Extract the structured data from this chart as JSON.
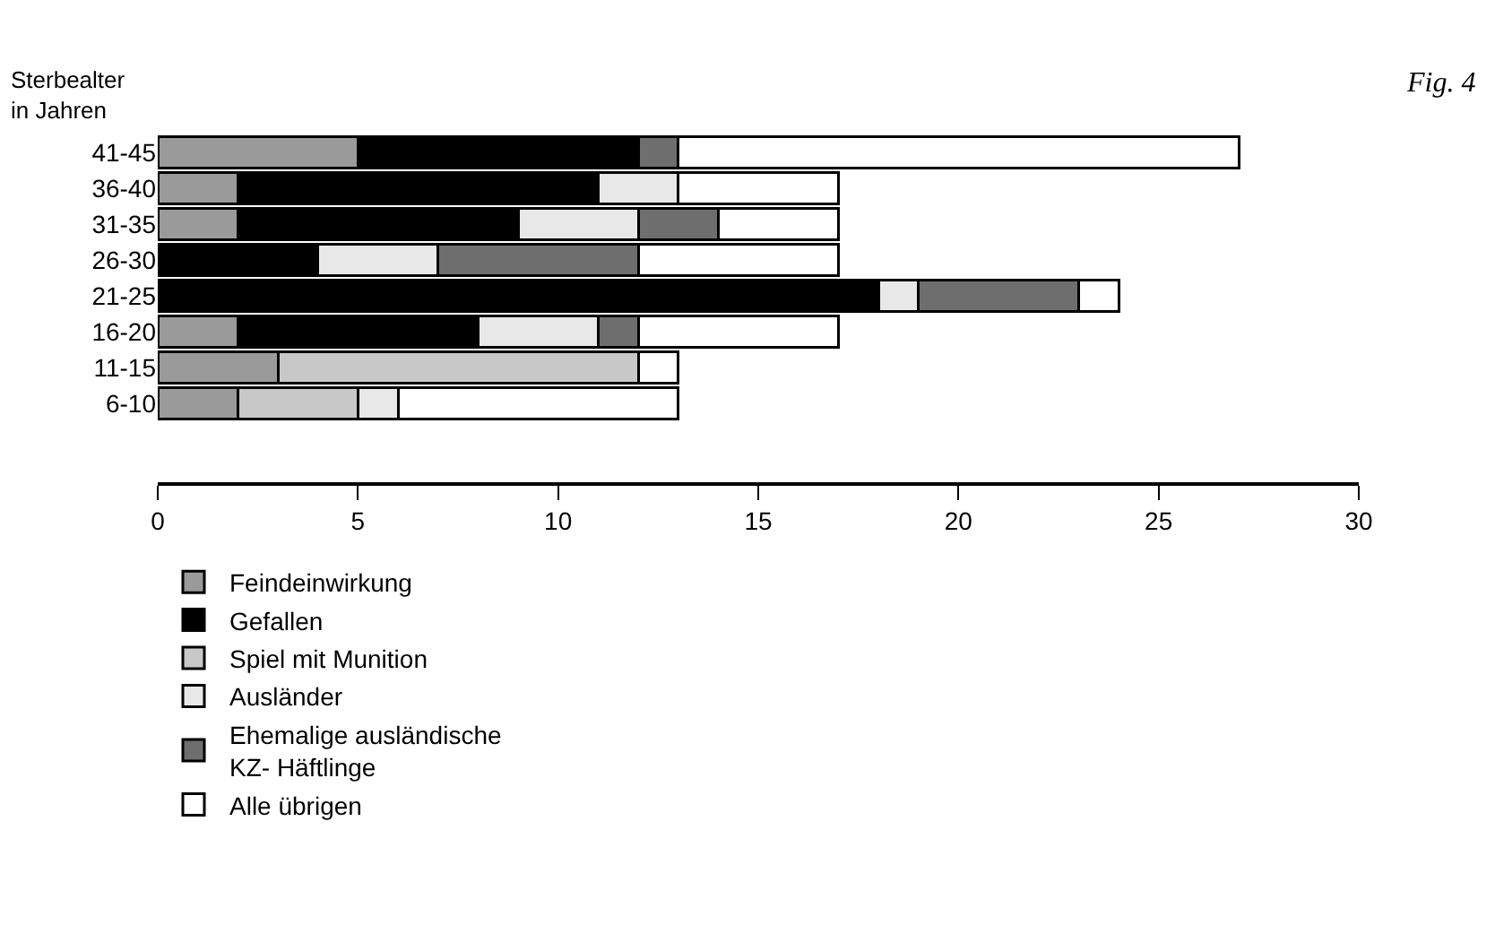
{
  "chart_data": {
    "type": "bar",
    "orientation": "horizontal",
    "stacked": true,
    "ylabel": "Sterbealter\nin Jahren",
    "annotations": [
      "Fig. 4"
    ],
    "categories": [
      "41-45",
      "36-40",
      "31-35",
      "26-30",
      "21-25",
      "16-20",
      "11-15",
      "6-10"
    ],
    "series": [
      {
        "name": "Feindeinwirkung",
        "color": "#9a9a9a",
        "values": [
          5,
          2,
          2,
          null,
          null,
          2,
          3,
          2
        ]
      },
      {
        "name": "Gefallen",
        "color": "#000000",
        "values": [
          7,
          9,
          7,
          4,
          18,
          6,
          null,
          null
        ]
      },
      {
        "name": "Spiel mit Munition",
        "color": "#c8c8c8",
        "values": [
          null,
          null,
          null,
          null,
          null,
          null,
          9,
          3
        ]
      },
      {
        "name": "Ausländer",
        "color": "#e8e8e8",
        "values": [
          null,
          2,
          3,
          3,
          1,
          3,
          null,
          1
        ]
      },
      {
        "name": "Ehemalige ausländische\nKZ- Häftlinge",
        "color": "#6e6e6e",
        "values": [
          1,
          null,
          2,
          5,
          4,
          1,
          null,
          null
        ]
      },
      {
        "name": "Alle übrigen",
        "color": "#ffffff",
        "values": [
          14,
          4,
          3,
          5,
          1,
          5,
          1,
          7
        ]
      }
    ],
    "xlim": [
      0,
      30
    ],
    "xticks": [
      0,
      5,
      10,
      15,
      20,
      25,
      30
    ],
    "legend": "bottom"
  }
}
